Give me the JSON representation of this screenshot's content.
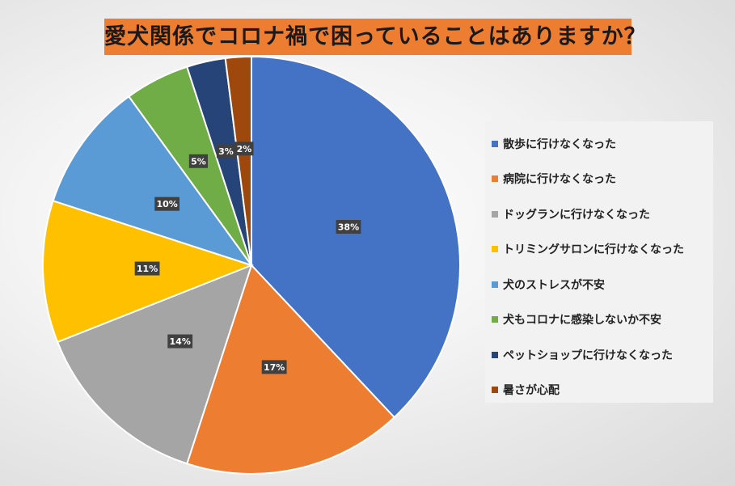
{
  "chart_data": {
    "type": "pie",
    "title": "愛犬関係でコロナ禍で困っていることはありますか？",
    "categories": [
      "散歩に行けなくなった",
      "病院に行けなくなった",
      "ドッグランに行けなくなった",
      "トリミングサロンに行けなくなった",
      "犬のストレスが不安",
      "犬もコロナに感染しないか不安",
      "ペットショップに行けなくなった",
      "暑さが心配"
    ],
    "values": [
      38,
      17,
      14,
      11,
      10,
      5,
      3,
      2
    ],
    "data_labels": [
      "38%",
      "17%",
      "14%",
      "11%",
      "10%",
      "5%",
      "3%",
      "2%"
    ],
    "colors": [
      "#4472C4",
      "#ED7D31",
      "#A5A5A5",
      "#FFC000",
      "#5B9BD5",
      "#70AD47",
      "#264478",
      "#9E480E"
    ],
    "legend_position": "right"
  }
}
